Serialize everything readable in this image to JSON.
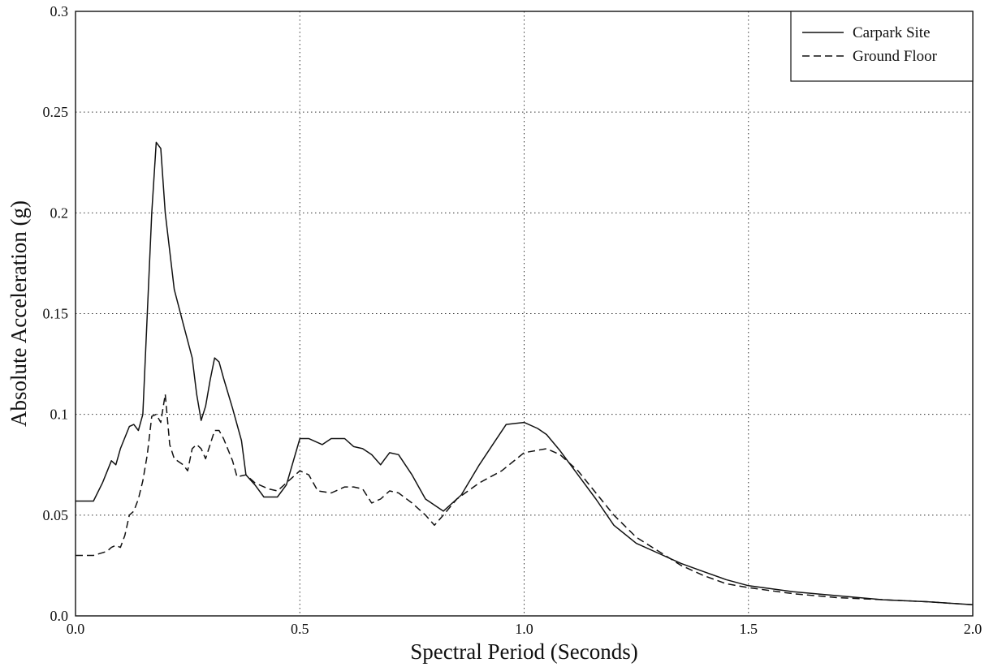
{
  "chart_data": {
    "type": "line",
    "title": "",
    "xlabel": "Spectral Period (Seconds)",
    "ylabel": "Absolute Acceleration (g)",
    "xlim": [
      0.0,
      2.0
    ],
    "ylim": [
      0.0,
      0.3
    ],
    "x_ticks": [
      0.0,
      0.5,
      1.0,
      1.5,
      2.0
    ],
    "x_tick_labels": [
      "0.0",
      "0.5",
      "1.0",
      "1.5",
      "2.0"
    ],
    "y_ticks": [
      0.0,
      0.05,
      0.1,
      0.15,
      0.2,
      0.25,
      0.3
    ],
    "y_tick_labels": [
      "0.0",
      "0.05",
      "0.1",
      "0.15",
      "0.2",
      "0.25",
      "0.3"
    ],
    "grid": true,
    "legend_position": "top-right",
    "series": [
      {
        "name": "Carpark Site",
        "style": "solid",
        "color": "#111111",
        "points": [
          [
            0.0,
            0.057
          ],
          [
            0.04,
            0.057
          ],
          [
            0.06,
            0.066
          ],
          [
            0.08,
            0.077
          ],
          [
            0.09,
            0.075
          ],
          [
            0.1,
            0.083
          ],
          [
            0.12,
            0.094
          ],
          [
            0.13,
            0.095
          ],
          [
            0.14,
            0.092
          ],
          [
            0.15,
            0.1
          ],
          [
            0.16,
            0.15
          ],
          [
            0.17,
            0.2
          ],
          [
            0.18,
            0.235
          ],
          [
            0.19,
            0.232
          ],
          [
            0.2,
            0.2
          ],
          [
            0.22,
            0.162
          ],
          [
            0.24,
            0.145
          ],
          [
            0.26,
            0.128
          ],
          [
            0.27,
            0.11
          ],
          [
            0.28,
            0.097
          ],
          [
            0.29,
            0.104
          ],
          [
            0.3,
            0.117
          ],
          [
            0.31,
            0.128
          ],
          [
            0.32,
            0.126
          ],
          [
            0.33,
            0.118
          ],
          [
            0.35,
            0.103
          ],
          [
            0.37,
            0.087
          ],
          [
            0.38,
            0.07
          ],
          [
            0.4,
            0.065
          ],
          [
            0.42,
            0.059
          ],
          [
            0.45,
            0.059
          ],
          [
            0.47,
            0.065
          ],
          [
            0.5,
            0.088
          ],
          [
            0.52,
            0.088
          ],
          [
            0.55,
            0.085
          ],
          [
            0.57,
            0.088
          ],
          [
            0.6,
            0.088
          ],
          [
            0.62,
            0.084
          ],
          [
            0.64,
            0.083
          ],
          [
            0.66,
            0.08
          ],
          [
            0.68,
            0.075
          ],
          [
            0.69,
            0.078
          ],
          [
            0.7,
            0.081
          ],
          [
            0.72,
            0.08
          ],
          [
            0.75,
            0.07
          ],
          [
            0.78,
            0.058
          ],
          [
            0.82,
            0.052
          ],
          [
            0.86,
            0.06
          ],
          [
            0.9,
            0.075
          ],
          [
            0.93,
            0.085
          ],
          [
            0.96,
            0.095
          ],
          [
            1.0,
            0.096
          ],
          [
            1.03,
            0.093
          ],
          [
            1.05,
            0.09
          ],
          [
            1.08,
            0.082
          ],
          [
            1.12,
            0.07
          ],
          [
            1.16,
            0.058
          ],
          [
            1.2,
            0.045
          ],
          [
            1.25,
            0.036
          ],
          [
            1.3,
            0.031
          ],
          [
            1.35,
            0.026
          ],
          [
            1.4,
            0.022
          ],
          [
            1.45,
            0.018
          ],
          [
            1.5,
            0.015
          ],
          [
            1.6,
            0.012
          ],
          [
            1.7,
            0.01
          ],
          [
            1.8,
            0.008
          ],
          [
            1.9,
            0.007
          ],
          [
            2.0,
            0.0055
          ]
        ]
      },
      {
        "name": "Ground Floor",
        "style": "dashed",
        "color": "#111111",
        "points": [
          [
            0.0,
            0.03
          ],
          [
            0.04,
            0.03
          ],
          [
            0.07,
            0.032
          ],
          [
            0.08,
            0.034
          ],
          [
            0.09,
            0.035
          ],
          [
            0.1,
            0.034
          ],
          [
            0.11,
            0.04
          ],
          [
            0.12,
            0.05
          ],
          [
            0.13,
            0.052
          ],
          [
            0.14,
            0.058
          ],
          [
            0.15,
            0.067
          ],
          [
            0.16,
            0.08
          ],
          [
            0.17,
            0.099
          ],
          [
            0.18,
            0.1
          ],
          [
            0.19,
            0.096
          ],
          [
            0.2,
            0.11
          ],
          [
            0.21,
            0.085
          ],
          [
            0.22,
            0.078
          ],
          [
            0.24,
            0.075
          ],
          [
            0.25,
            0.072
          ],
          [
            0.26,
            0.083
          ],
          [
            0.27,
            0.085
          ],
          [
            0.28,
            0.083
          ],
          [
            0.29,
            0.078
          ],
          [
            0.3,
            0.085
          ],
          [
            0.31,
            0.092
          ],
          [
            0.32,
            0.092
          ],
          [
            0.33,
            0.088
          ],
          [
            0.35,
            0.077
          ],
          [
            0.36,
            0.069
          ],
          [
            0.38,
            0.07
          ],
          [
            0.4,
            0.066
          ],
          [
            0.43,
            0.063
          ],
          [
            0.45,
            0.062
          ],
          [
            0.47,
            0.066
          ],
          [
            0.5,
            0.072
          ],
          [
            0.52,
            0.07
          ],
          [
            0.54,
            0.062
          ],
          [
            0.57,
            0.061
          ],
          [
            0.6,
            0.064
          ],
          [
            0.62,
            0.064
          ],
          [
            0.64,
            0.063
          ],
          [
            0.66,
            0.056
          ],
          [
            0.68,
            0.058
          ],
          [
            0.7,
            0.062
          ],
          [
            0.72,
            0.061
          ],
          [
            0.75,
            0.056
          ],
          [
            0.78,
            0.05
          ],
          [
            0.8,
            0.045
          ],
          [
            0.82,
            0.05
          ],
          [
            0.85,
            0.058
          ],
          [
            0.9,
            0.066
          ],
          [
            0.95,
            0.072
          ],
          [
            1.0,
            0.081
          ],
          [
            1.05,
            0.083
          ],
          [
            1.08,
            0.08
          ],
          [
            1.12,
            0.072
          ],
          [
            1.16,
            0.061
          ],
          [
            1.2,
            0.05
          ],
          [
            1.25,
            0.039
          ],
          [
            1.3,
            0.032
          ],
          [
            1.35,
            0.025
          ],
          [
            1.4,
            0.02
          ],
          [
            1.45,
            0.016
          ],
          [
            1.5,
            0.014
          ],
          [
            1.6,
            0.011
          ],
          [
            1.7,
            0.009
          ],
          [
            1.8,
            0.008
          ],
          [
            1.9,
            0.007
          ],
          [
            2.0,
            0.0055
          ]
        ]
      }
    ]
  }
}
